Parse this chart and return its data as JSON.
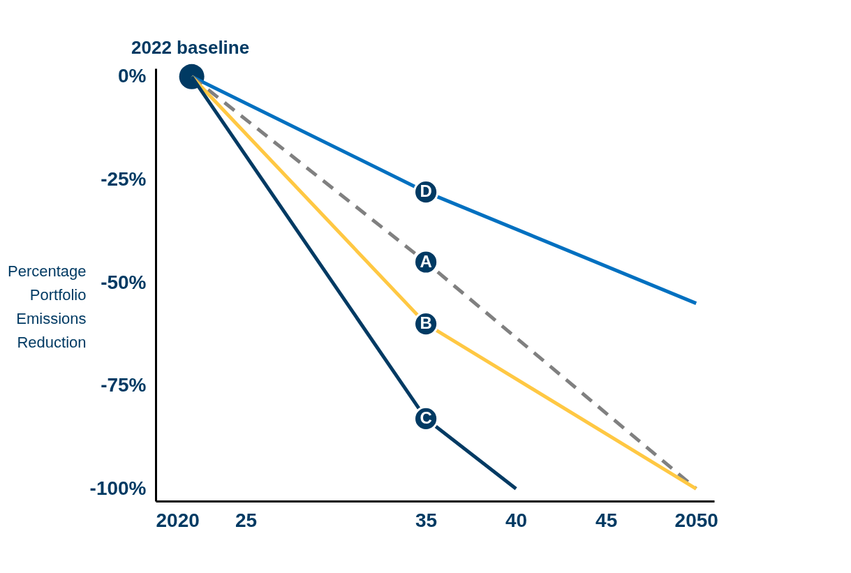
{
  "chart_data": {
    "type": "line",
    "ylabel": "Percentage Portfolio Emissions Reduction",
    "x": [
      2022,
      2035,
      2050
    ],
    "xlim": [
      2020,
      2051
    ],
    "xticks": [
      {
        "value": 2020,
        "label": "2020"
      },
      {
        "value": 2025,
        "label": "25"
      },
      {
        "value": 2035,
        "label": "35"
      },
      {
        "value": 2040,
        "label": "40"
      },
      {
        "value": 2045,
        "label": "45"
      },
      {
        "value": 2050,
        "label": "2050"
      }
    ],
    "ylim": [
      -103,
      2
    ],
    "yticks": [
      {
        "value": 0,
        "label": "0%"
      },
      {
        "value": -25,
        "label": "-25%"
      },
      {
        "value": -50,
        "label": "-50%"
      },
      {
        "value": -75,
        "label": "-75%"
      },
      {
        "value": -100,
        "label": "-100%"
      }
    ],
    "series": [
      {
        "name": "D",
        "color": "#0070c0",
        "values": [
          0,
          -28,
          -55
        ]
      },
      {
        "name": "A",
        "color": "#808080",
        "line_style": "dashed",
        "values": [
          0,
          -45,
          -100
        ]
      },
      {
        "name": "B",
        "color": "#ffc843",
        "values": [
          0,
          -60,
          -100
        ]
      },
      {
        "name": "C",
        "color": "#003a63",
        "x": [
          2022,
          2035,
          2040
        ],
        "values": [
          0,
          -83,
          -100
        ]
      }
    ],
    "annotations": [
      {
        "text": "2022 baseline",
        "x": 2022,
        "y": 0
      }
    ],
    "grid": false,
    "legend": false
  }
}
